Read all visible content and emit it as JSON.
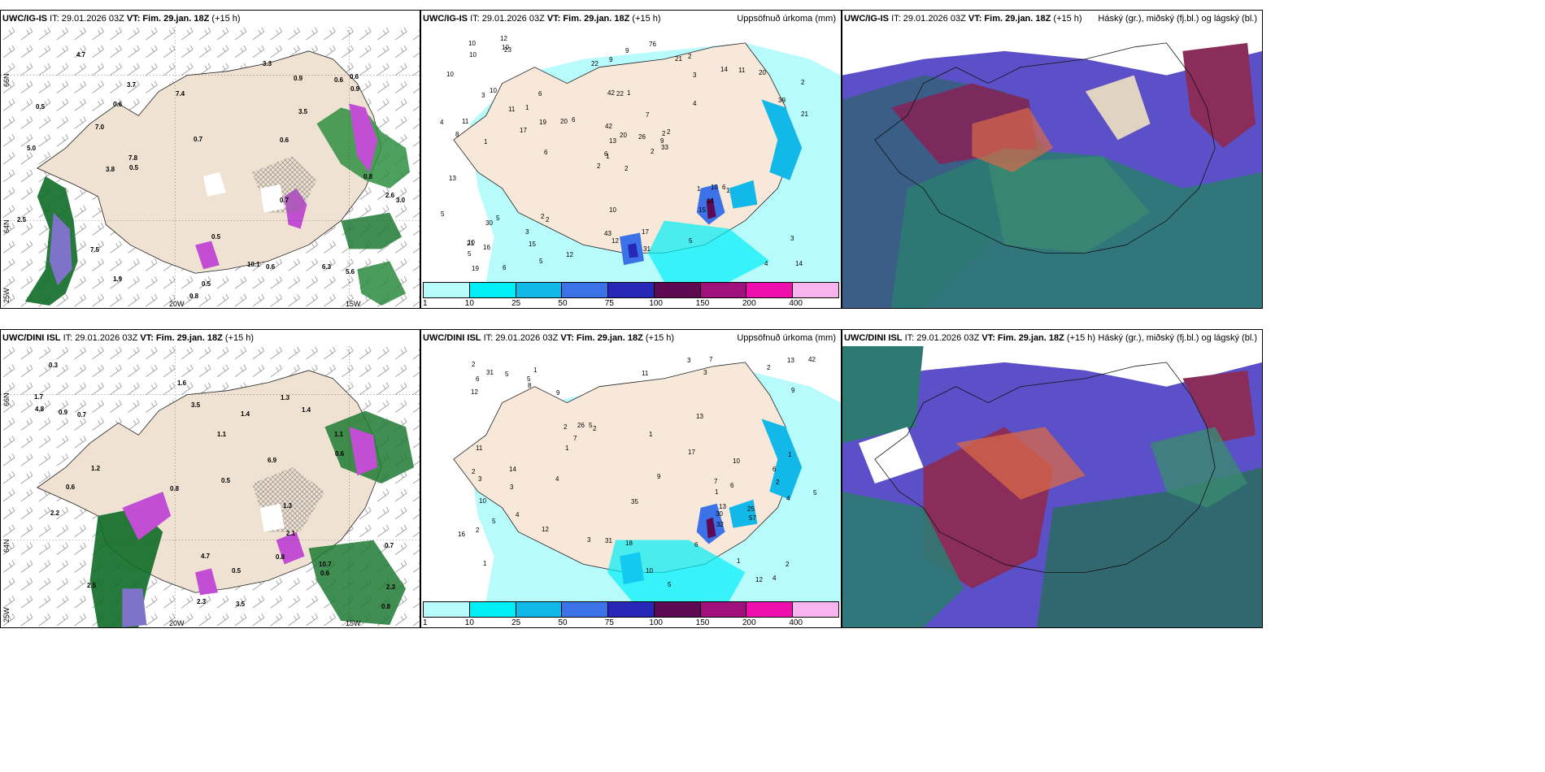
{
  "panels": [
    {
      "model": "UWC/IG-IS",
      "it": "IT: 29.01.2026 03Z",
      "vt_label": "VT:",
      "vt": "Fim. 29.jan. 18Z",
      "lead": "(+15 h)",
      "right": ""
    },
    {
      "model": "UWC/IG-IS",
      "it": "IT: 29.01.2026 03Z",
      "vt_label": "VT:",
      "vt": "Fim. 29.jan. 18Z",
      "lead": "(+15 h)",
      "right": "Uppsöfnuð úrkoma (mm)"
    },
    {
      "model": "UWC/IG-IS",
      "it": "IT: 29.01.2026 03Z",
      "vt_label": "VT:",
      "vt": "Fim. 29.jan. 18Z",
      "lead": "(+15 h)",
      "right": "Háský (gr.), miðský (fj.bl.) og lágský (bl.)"
    },
    {
      "model": "UWC/DINI ISL",
      "it": "IT: 29.01.2026 03Z",
      "vt_label": "VT:",
      "vt": "Fim. 29.jan. 18Z",
      "lead": "(+15 h)",
      "right": ""
    },
    {
      "model": "UWC/DINI ISL",
      "it": "IT: 29.01.2026 03Z",
      "vt_label": "VT:",
      "vt": "Fim. 29.jan. 18Z",
      "lead": "(+15 h)",
      "right": "Uppsöfnuð úrkoma (mm)"
    },
    {
      "model": "UWC/DINI ISL",
      "it": "IT: 29.01.2026 03Z",
      "vt_label": "VT:",
      "vt": "Fim. 29.jan. 18Z",
      "lead": "(+15 h)",
      "right": "Háský (gr.), miðský (fj.bl.) og lágský (bl.)"
    }
  ],
  "colorbar": {
    "labels": [
      "1",
      "10",
      "25",
      "50",
      "75",
      "100",
      "150",
      "200",
      "400"
    ],
    "colors": [
      "#b7fbfd",
      "#00eef5",
      "#12b9e8",
      "#3b72e8",
      "#2828b8",
      "#5e0a52",
      "#a0117e",
      "#ef0eae",
      "#f8b4ef"
    ]
  },
  "axis": {
    "lon_left": "20W",
    "lon_right": "15W",
    "lat_top": "66N",
    "lat_mid": "64N",
    "lon_edge": "25W"
  },
  "precip_top": [
    "2",
    "3",
    "1",
    "10",
    "2",
    "2",
    "2",
    "1",
    "3",
    "2",
    "23",
    "14",
    "1",
    "2",
    "2",
    "4",
    "6",
    "42",
    "7",
    "5",
    "6",
    "5",
    "15",
    "22",
    "2",
    "1",
    "10",
    "9",
    "8",
    "1",
    "21",
    "6",
    "43",
    "13",
    "6",
    "14",
    "2",
    "4",
    "3",
    "6",
    "76",
    "20",
    "17",
    "15",
    "5",
    "4",
    "9",
    "19",
    "12",
    "33",
    "30",
    "39",
    "10",
    "14",
    "5",
    "3",
    "10",
    "10",
    "17",
    "20",
    "9",
    "6",
    "11",
    "1",
    "11",
    "12",
    "21",
    "22",
    "20",
    "5",
    "10",
    "12",
    "10",
    "19",
    "21",
    "10",
    "11",
    "13",
    "42",
    "31",
    "26",
    "16"
  ],
  "precip_bottom": [
    "1",
    "2",
    "1",
    "1",
    "2",
    "1",
    "2",
    "3",
    "2",
    "5",
    "12",
    "2",
    "6",
    "2",
    "3",
    "1",
    "35",
    "9",
    "5",
    "4",
    "42",
    "2",
    "1",
    "4",
    "3",
    "5",
    "13",
    "3",
    "8",
    "10",
    "10",
    "6",
    "7",
    "4",
    "6",
    "57",
    "30",
    "14",
    "18",
    "5",
    "9",
    "7",
    "4",
    "31",
    "25",
    "12",
    "16",
    "31",
    "17",
    "11",
    "5",
    "26",
    "13",
    "7",
    "32",
    "12",
    "13",
    "2",
    "3",
    "5",
    "6",
    "9",
    "1",
    "10",
    "11"
  ],
  "wind_labels_top": [
    "0.5",
    "0.6",
    "0.6",
    "0.5",
    "0.6",
    "0.8",
    "0.7",
    "0.5",
    "0.6",
    "3.0",
    "2.6",
    "3.7",
    "3.5",
    "7.5",
    "5.0",
    "1.9",
    "7.8",
    "7.4",
    "5.6",
    "10.1",
    "6.3",
    "0.8",
    "0.7",
    "0.5",
    "0.9",
    "7.0",
    "0.9",
    "3.3",
    "4.7",
    "3.8",
    "2.5",
    "0.6"
  ],
  "wind_labels_bottom": [
    "1.1",
    "0.6",
    "1.7",
    "1.1",
    "2.3",
    "3.5",
    "3.5",
    "1.3",
    "1.2",
    "2.2",
    "10.7",
    "1.4",
    "1.3",
    "0.9",
    "2.3",
    "1.4",
    "0.7",
    "0.8",
    "0.5",
    "2.1",
    "4.8",
    "4.7",
    "6.9",
    "0.8",
    "0.6",
    "0.7",
    "0.3",
    "0.8",
    "0.5",
    "1.6",
    "2.5",
    "0.6"
  ]
}
